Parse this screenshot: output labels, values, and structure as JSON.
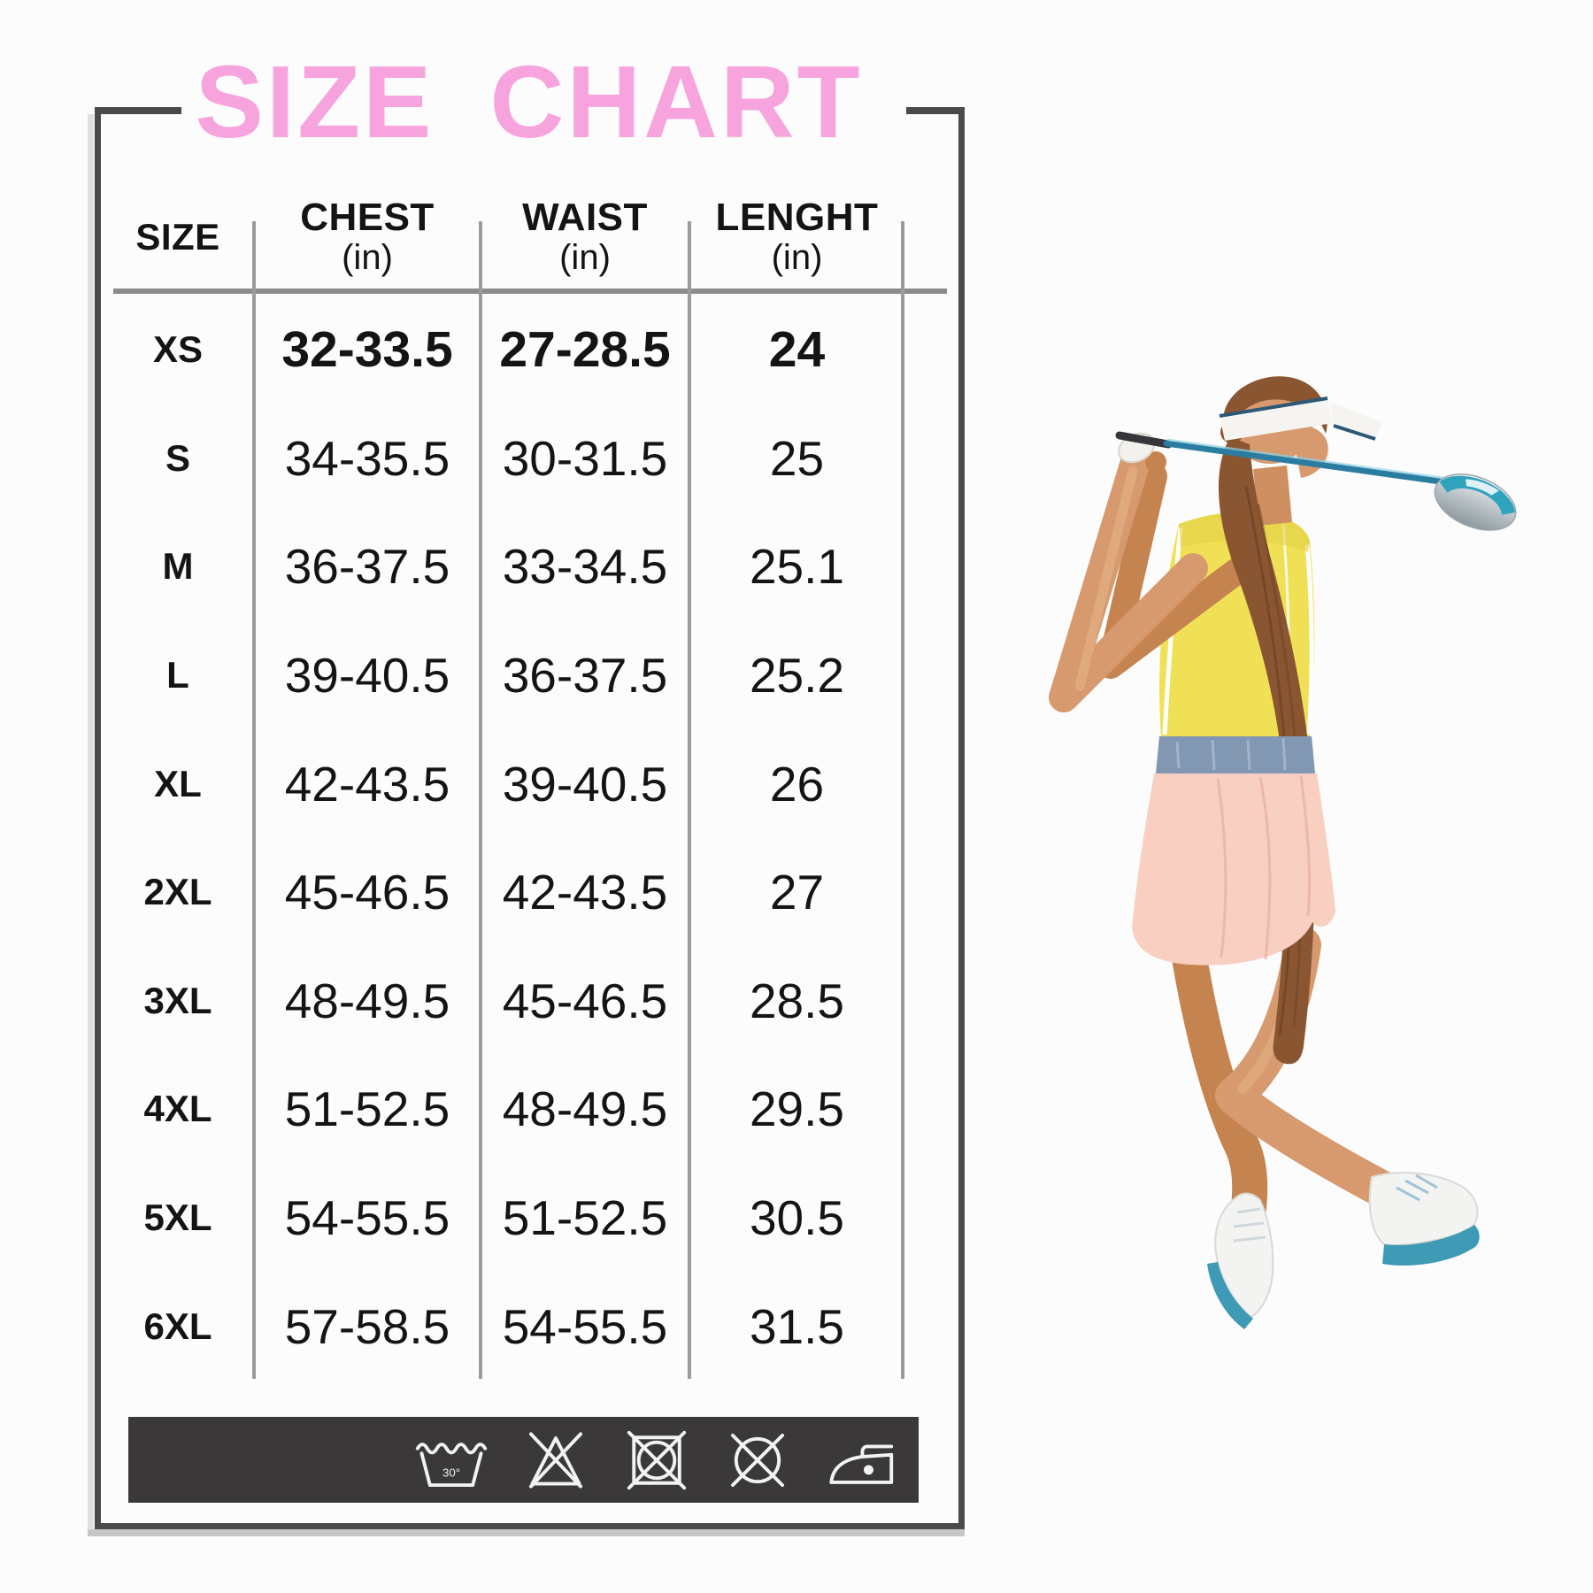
{
  "title": "SIZE CHART",
  "table": {
    "columns": [
      "SIZE",
      "CHEST",
      "WAIST",
      "LENGHT"
    ],
    "unit": "(in)",
    "rows": [
      {
        "size": "XS",
        "chest": "32-33.5",
        "waist": "27-28.5",
        "length": "24",
        "bold": true
      },
      {
        "size": "S",
        "chest": "34-35.5",
        "waist": "30-31.5",
        "length": "25",
        "bold": false
      },
      {
        "size": "M",
        "chest": "36-37.5",
        "waist": "33-34.5",
        "length": "25.1",
        "bold": false
      },
      {
        "size": "L",
        "chest": "39-40.5",
        "waist": "36-37.5",
        "length": "25.2",
        "bold": false
      },
      {
        "size": "XL",
        "chest": "42-43.5",
        "waist": "39-40.5",
        "length": "26",
        "bold": false
      },
      {
        "size": "2XL",
        "chest": "45-46.5",
        "waist": "42-43.5",
        "length": "27",
        "bold": false
      },
      {
        "size": "3XL",
        "chest": "48-49.5",
        "waist": "45-46.5",
        "length": "28.5",
        "bold": false
      },
      {
        "size": "4XL",
        "chest": "51-52.5",
        "waist": "48-49.5",
        "length": "29.5",
        "bold": false
      },
      {
        "size": "5XL",
        "chest": "54-55.5",
        "waist": "51-52.5",
        "length": "30.5",
        "bold": false
      },
      {
        "size": "6XL",
        "chest": "57-58.5",
        "waist": "54-55.5",
        "length": "31.5",
        "bold": false
      }
    ]
  },
  "care_bar": {
    "icons": [
      {
        "name": "machine-wash-30-icon",
        "symbol": "wash",
        "label": "30°"
      },
      {
        "name": "do-not-bleach-icon",
        "symbol": "no-bleach"
      },
      {
        "name": "do-not-tumble-dry-icon",
        "symbol": "no-tumble-dry"
      },
      {
        "name": "do-not-dry-clean-icon",
        "symbol": "no-dry-clean"
      },
      {
        "name": "iron-low-heat-icon",
        "symbol": "iron-one-dot"
      }
    ]
  },
  "golfer_image": {
    "alt": "Female golfer seen from behind in white visor, yellow sleeveless polo and pink skort finishing a driver swing"
  },
  "colors": {
    "title_pink": "#f7a3de",
    "frame_gray": "#4a4a48",
    "separator_gray": "#9b9b9b",
    "header_line_gray": "#8c8c8c",
    "care_bar_charcoal": "#3a3839",
    "care_icon_white": "#f2f2f2",
    "text_black": "#141414",
    "shirt_yellow": "#f0e055",
    "skirt_pink": "#f8cfc0",
    "belt_blue": "#8197b2",
    "hair_brown": "#8a5632",
    "skin_tan": "#d79a6f",
    "skin_shadow": "#c5834f",
    "club_teal": "#2a7da0",
    "club_head_teal": "#2fa3bd",
    "shoe_teal": "#3e9ab5",
    "visor_white": "#f6f4f1",
    "visor_navy": "#2b5876"
  }
}
